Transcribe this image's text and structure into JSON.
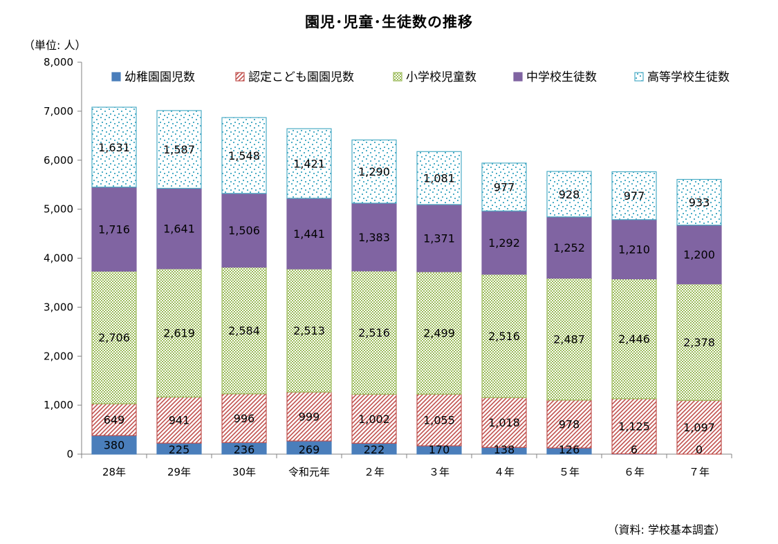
{
  "page": {
    "title": "園児･児童･生徒数の推移",
    "unit": "（単位: 人）",
    "source": "（資料: 学校基本調査）"
  },
  "colors": {
    "kindergarten": "#4a7ebb",
    "kodomo_en": "#c0504d",
    "elementary": "#9bbb59",
    "junior_high": "#8064a2",
    "high_school": "#4bacc6",
    "axis": "#808080"
  },
  "chart_data": {
    "type": "bar",
    "stacked": true,
    "title": "園児･児童･生徒数の推移",
    "ylabel": "（単位: 人）",
    "xlabel": "",
    "ylim": [
      0,
      8000
    ],
    "yticks": [
      0,
      1000,
      2000,
      3000,
      4000,
      5000,
      6000,
      7000,
      8000
    ],
    "ytick_labels": [
      "0",
      "1,000",
      "2,000",
      "3,000",
      "4,000",
      "5,000",
      "6,000",
      "7,000",
      "8,000"
    ],
    "grid": false,
    "legend_position": "top",
    "categories": [
      "28年",
      "29年",
      "30年",
      "令和元年",
      "２年",
      "３年",
      "４年",
      "５年",
      "６年",
      "７年"
    ],
    "series": [
      {
        "name": "幼稚園園児数",
        "key": "kindergarten",
        "pattern": "solid",
        "values": [
          380,
          225,
          236,
          269,
          222,
          170,
          138,
          126,
          6,
          0
        ],
        "labels": [
          "380",
          "225",
          "236",
          "269",
          "222",
          "170",
          "138",
          "126",
          "6",
          "0"
        ]
      },
      {
        "name": "認定こども園園児数",
        "key": "kodomo_en",
        "pattern": "diagonal",
        "values": [
          649,
          941,
          996,
          999,
          1002,
          1055,
          1018,
          978,
          1125,
          1097
        ],
        "labels": [
          "649",
          "941",
          "996",
          "999",
          "1,002",
          "1,055",
          "1,018",
          "978",
          "1,125",
          "1,097"
        ]
      },
      {
        "name": "小学校児童数",
        "key": "elementary",
        "pattern": "dots",
        "values": [
          2706,
          2619,
          2584,
          2513,
          2516,
          2499,
          2516,
          2487,
          2446,
          2378
        ],
        "labels": [
          "2,706",
          "2,619",
          "2,584",
          "2,513",
          "2,516",
          "2,499",
          "2,516",
          "2,487",
          "2,446",
          "2,378"
        ]
      },
      {
        "name": "中学校生徒数",
        "key": "junior_high",
        "pattern": "solid",
        "values": [
          1716,
          1641,
          1506,
          1441,
          1383,
          1371,
          1292,
          1252,
          1210,
          1200
        ],
        "labels": [
          "1,716",
          "1,641",
          "1,506",
          "1,441",
          "1,383",
          "1,371",
          "1,292",
          "1,252",
          "1,210",
          "1,200"
        ]
      },
      {
        "name": "高等学校生徒数",
        "key": "high_school",
        "pattern": "confetti",
        "values": [
          1631,
          1587,
          1548,
          1421,
          1290,
          1081,
          977,
          928,
          977,
          933
        ],
        "labels": [
          "1,631",
          "1,587",
          "1,548",
          "1,421",
          "1,290",
          "1,081",
          "977",
          "928",
          "977",
          "933"
        ]
      }
    ]
  }
}
